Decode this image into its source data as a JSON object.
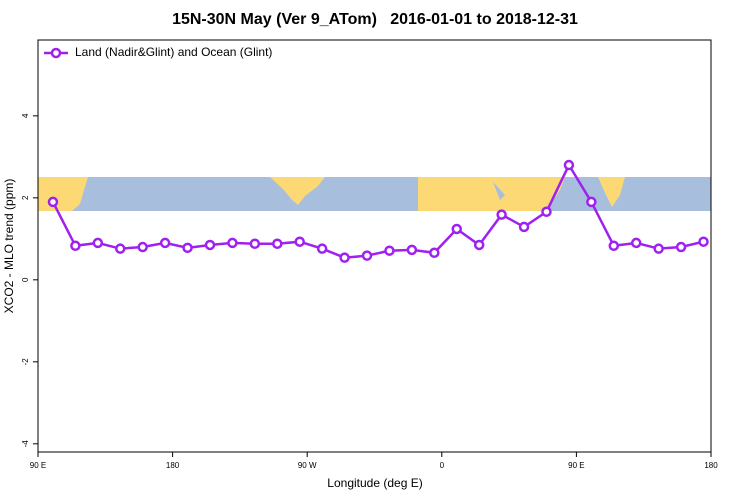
{
  "chart_data": {
    "type": "line",
    "title": "15N-30N May (Ver 9_ATom)   2016-01-01 to 2018-12-31",
    "xlabel": "Longitude (deg E)",
    "ylabel": "XCO2 - MLO trend (ppm)",
    "x": [
      100,
      115,
      130,
      145,
      160,
      175,
      190,
      205,
      220,
      235,
      250,
      265,
      280,
      295,
      310,
      325,
      340,
      355,
      370,
      385,
      400,
      415,
      430,
      445,
      460,
      475,
      490,
      505,
      520,
      535
    ],
    "series": [
      {
        "name": "Land (Nadir&Glint) and Ocean (Glint)",
        "color": "#a020f0",
        "values": [
          1.9,
          0.83,
          0.9,
          0.76,
          0.8,
          0.9,
          0.78,
          0.85,
          0.9,
          0.88,
          0.88,
          0.93,
          0.76,
          0.54,
          0.59,
          0.71,
          0.73,
          0.66,
          1.24,
          0.85,
          1.59,
          1.29,
          1.66,
          2.8,
          1.9,
          0.83,
          0.9,
          0.76,
          0.8,
          0.93
        ]
      }
    ],
    "xlim": [
      90,
      540
    ],
    "xticks": [
      {
        "value": 90,
        "label": "90 E"
      },
      180,
      {
        "value": 270,
        "label": "90 W"
      },
      {
        "value": 360,
        "label": "0"
      },
      {
        "value": 450,
        "label": "90 E"
      },
      {
        "value": 540,
        "label": "180"
      }
    ],
    "ylim": [
      -4.2,
      5.85
    ],
    "yticks": [
      -4,
      -2,
      0,
      2,
      4
    ],
    "legend": "top-left"
  }
}
